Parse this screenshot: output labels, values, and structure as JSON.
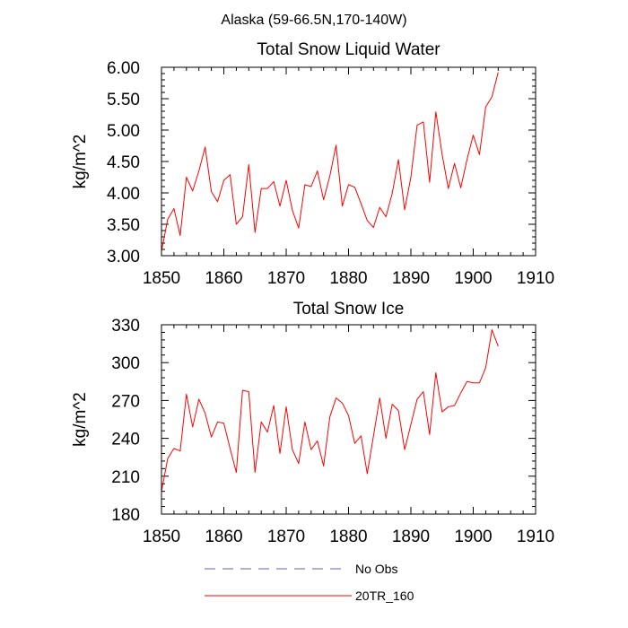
{
  "suptitle": "Alaska (59-66.5N,170-140W)",
  "chart_data": [
    {
      "type": "line",
      "title": "Total Snow Liquid Water",
      "xlabel": "",
      "ylabel": "kg/m^2",
      "xlim": [
        1850,
        1910
      ],
      "ylim": [
        3.0,
        6.0
      ],
      "xticks": [
        1850,
        1860,
        1870,
        1880,
        1890,
        1900,
        1910
      ],
      "xtick_labels": [
        "1850",
        "1860",
        "1870",
        "1880",
        "1890",
        "1900",
        "1910"
      ],
      "yticks": [
        3.0,
        3.5,
        4.0,
        4.5,
        5.0,
        5.5,
        6.0
      ],
      "ytick_labels": [
        "3.00",
        "3.50",
        "4.00",
        "4.50",
        "5.00",
        "5.50",
        "6.00"
      ],
      "series": [
        {
          "name": "20TR_160",
          "color": "#ff0000",
          "x": [
            1850,
            1851,
            1852,
            1853,
            1854,
            1855,
            1856,
            1857,
            1858,
            1859,
            1860,
            1861,
            1862,
            1863,
            1864,
            1865,
            1866,
            1867,
            1868,
            1869,
            1870,
            1871,
            1872,
            1873,
            1874,
            1875,
            1876,
            1877,
            1878,
            1879,
            1880,
            1881,
            1882,
            1883,
            1884,
            1885,
            1886,
            1887,
            1888,
            1889,
            1890,
            1891,
            1892,
            1893,
            1894,
            1895,
            1896,
            1897,
            1898,
            1899,
            1900,
            1901,
            1902,
            1903,
            1904
          ],
          "values": [
            3.07,
            3.58,
            3.75,
            3.32,
            4.25,
            4.03,
            4.35,
            4.73,
            4.02,
            3.86,
            4.2,
            4.29,
            3.5,
            3.62,
            4.45,
            3.37,
            4.07,
            4.07,
            4.18,
            3.79,
            4.2,
            3.72,
            3.44,
            4.13,
            4.1,
            4.35,
            3.89,
            4.27,
            4.76,
            3.79,
            4.13,
            4.09,
            3.83,
            3.56,
            3.45,
            3.77,
            3.62,
            3.99,
            4.53,
            3.73,
            4.25,
            5.08,
            5.13,
            4.17,
            5.29,
            4.62,
            4.07,
            4.47,
            4.08,
            4.53,
            4.92,
            4.61,
            5.37,
            5.53,
            5.92
          ]
        }
      ]
    },
    {
      "type": "line",
      "title": "Total Snow Ice",
      "xlabel": "",
      "ylabel": "kg/m^2",
      "xlim": [
        1850,
        1910
      ],
      "ylim": [
        180,
        330
      ],
      "xticks": [
        1850,
        1860,
        1870,
        1880,
        1890,
        1900,
        1910
      ],
      "xtick_labels": [
        "1850",
        "1860",
        "1870",
        "1880",
        "1890",
        "1900",
        "1910"
      ],
      "yticks": [
        180,
        210,
        240,
        270,
        300,
        330
      ],
      "ytick_labels": [
        "180",
        "210",
        "240",
        "270",
        "300",
        "330"
      ],
      "series": [
        {
          "name": "20TR_160",
          "color": "#ff0000",
          "x": [
            1850,
            1851,
            1852,
            1853,
            1854,
            1855,
            1856,
            1857,
            1858,
            1859,
            1860,
            1861,
            1862,
            1863,
            1864,
            1865,
            1866,
            1867,
            1868,
            1869,
            1870,
            1871,
            1872,
            1873,
            1874,
            1875,
            1876,
            1877,
            1878,
            1879,
            1880,
            1881,
            1882,
            1883,
            1884,
            1885,
            1886,
            1887,
            1888,
            1889,
            1890,
            1891,
            1892,
            1893,
            1894,
            1895,
            1896,
            1897,
            1898,
            1899,
            1900,
            1901,
            1902,
            1903,
            1904
          ],
          "values": [
            198,
            224,
            232,
            230,
            275,
            249,
            271,
            260,
            241,
            253,
            252,
            232,
            213,
            278,
            277,
            213,
            253,
            245,
            266,
            228,
            265,
            231,
            220,
            253,
            231,
            238,
            218,
            257,
            272,
            268,
            258,
            236,
            242,
            212,
            242,
            272,
            240,
            267,
            262,
            231,
            251,
            271,
            277,
            243,
            292,
            261,
            265,
            266,
            276,
            285,
            284,
            284,
            296,
            326,
            313
          ]
        }
      ]
    }
  ],
  "legend": {
    "placement": "bottom-center",
    "items": [
      {
        "label": "No Obs",
        "color": "#5c5cd6",
        "style": "dashed"
      },
      {
        "label": "20TR_160",
        "color": "#ff0000",
        "style": "solid"
      }
    ]
  }
}
